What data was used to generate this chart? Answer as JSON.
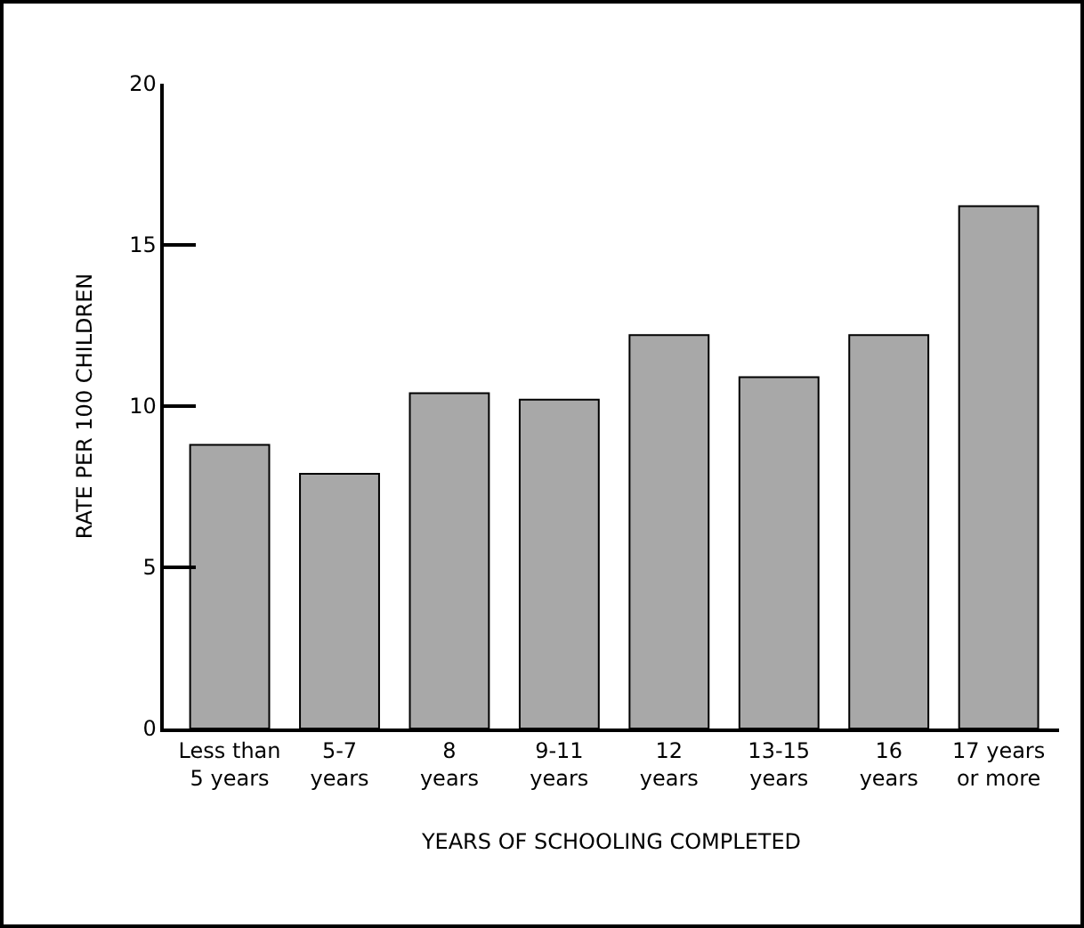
{
  "chart_data": {
    "type": "bar",
    "xlabel": "YEARS OF SCHOOLING COMPLETED",
    "ylabel": "RATE PER 100 CHILDREN",
    "categories": [
      "Less than\n5 years",
      "5-7\nyears",
      "8\nyears",
      "9-11\nyears",
      "12\nyears",
      "13-15\nyears",
      "16\nyears",
      "17 years\nor more"
    ],
    "values": [
      8.8,
      7.9,
      10.4,
      10.2,
      12.2,
      10.9,
      12.2,
      16.2
    ],
    "color": "#a8a8a8",
    "ylim": [
      0,
      20
    ],
    "yticks": [
      0,
      5,
      10,
      15,
      20
    ],
    "grid": false,
    "legend": false
  }
}
